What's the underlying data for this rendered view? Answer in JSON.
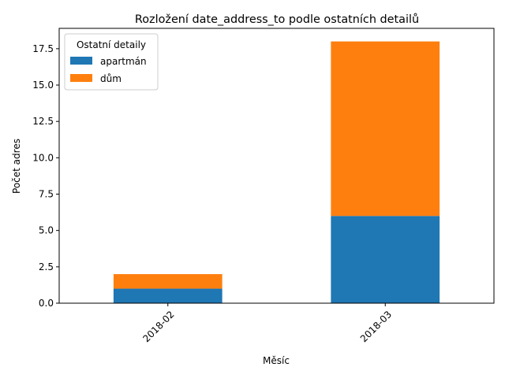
{
  "chart_data": {
    "type": "bar",
    "stacked": true,
    "title": "Rozložení date_address_to podle ostatních detailů",
    "xlabel": "Měsíc",
    "ylabel": "Počet adres",
    "categories": [
      "2018-02",
      "2018-03"
    ],
    "series": [
      {
        "name": "apartmán",
        "values": [
          1,
          6
        ],
        "color": "#1f77b4"
      },
      {
        "name": "dům",
        "values": [
          1,
          12
        ],
        "color": "#ff7f0e"
      }
    ],
    "ylim": [
      0,
      18.9
    ],
    "yticks": [
      "0.0",
      "2.5",
      "5.0",
      "7.5",
      "10.0",
      "12.5",
      "15.0",
      "17.5"
    ],
    "grid": false,
    "legend": {
      "title": "Ostatní detaily",
      "placement": "top-left"
    }
  }
}
